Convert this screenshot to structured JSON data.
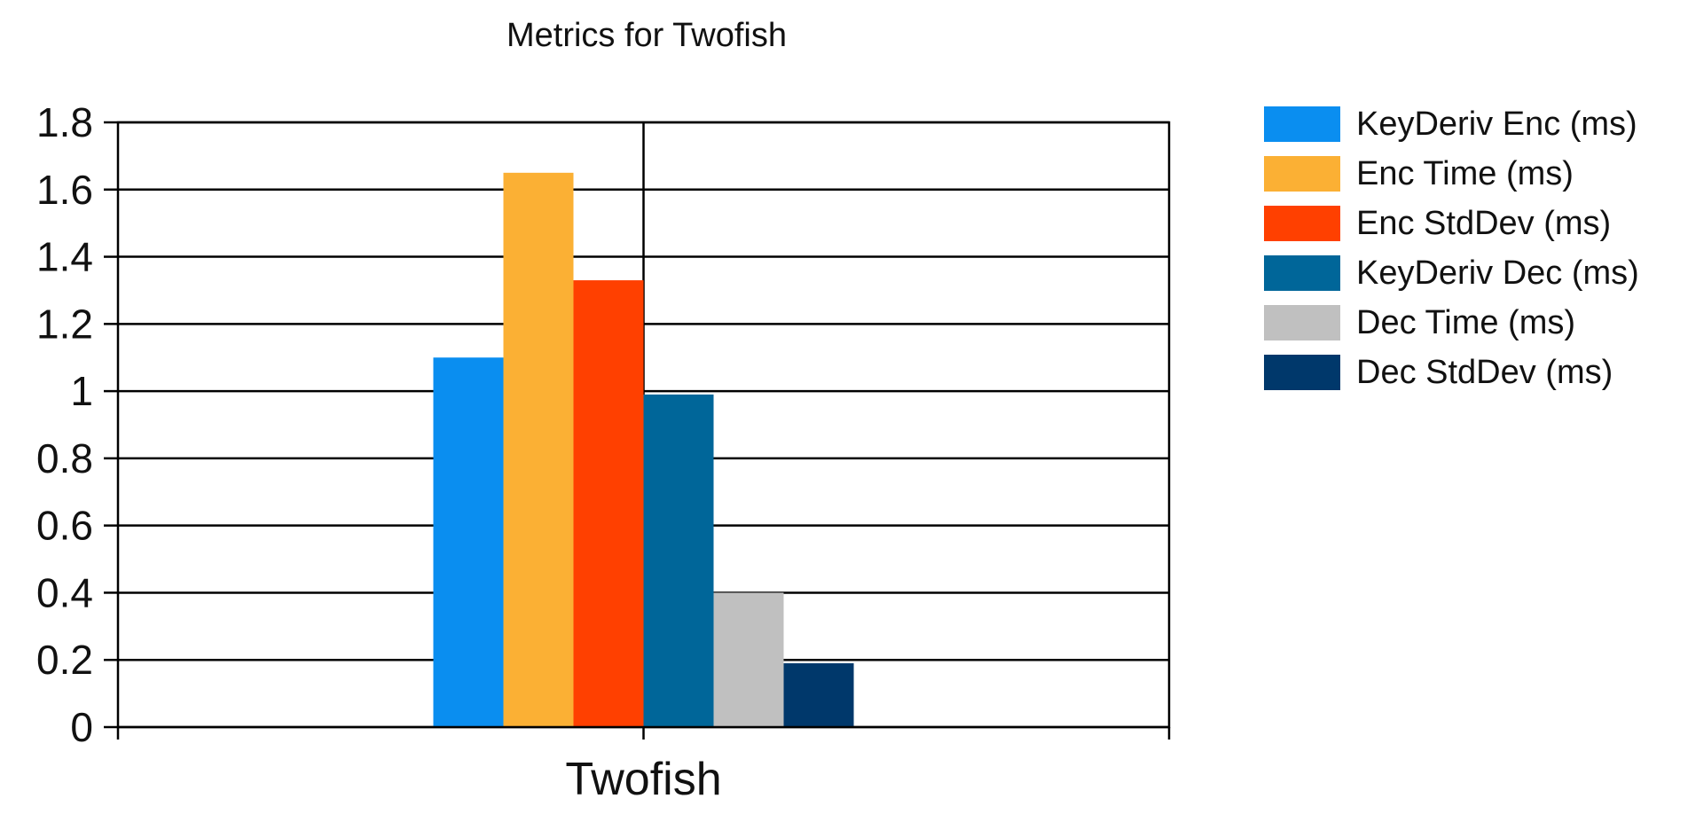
{
  "chart_data": {
    "type": "bar",
    "title": "Metrics for Twofish",
    "xlabel": "",
    "ylabel": "",
    "categories": [
      "Twofish"
    ],
    "ylim": [
      0,
      1.8
    ],
    "yticks": [
      "0",
      "0.2",
      "0.4",
      "0.6",
      "0.8",
      "1",
      "1.2",
      "1.4",
      "1.6",
      "1.8"
    ],
    "grid": true,
    "legend_position": "right",
    "series": [
      {
        "name": "KeyDeriv Enc (ms)",
        "values": [
          1.1
        ],
        "color": "#0a8ef0"
      },
      {
        "name": "Enc Time (ms)",
        "values": [
          1.65
        ],
        "color": "#fbb034"
      },
      {
        "name": "Enc StdDev (ms)",
        "values": [
          1.33
        ],
        "color": "#ff4000"
      },
      {
        "name": "KeyDeriv Dec (ms)",
        "values": [
          0.99
        ],
        "color": "#006699"
      },
      {
        "name": "Dec Time (ms)",
        "values": [
          0.4
        ],
        "color": "#c0c0c0"
      },
      {
        "name": "Dec StdDev (ms)",
        "values": [
          0.19
        ],
        "color": "#00386b"
      }
    ]
  }
}
